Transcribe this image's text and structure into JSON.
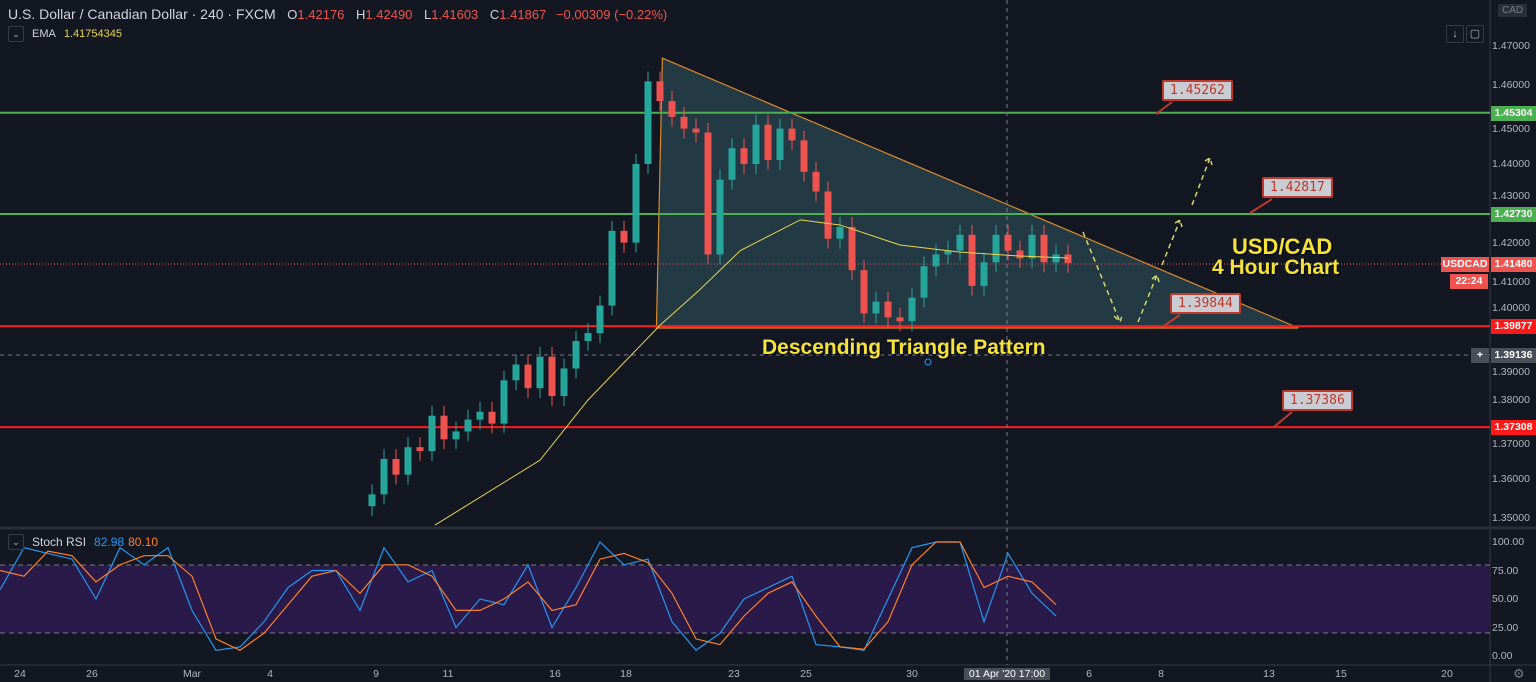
{
  "header": {
    "symbol": "U.S. Dollar / Canadian Dollar · 240 · FXCM",
    "o_label": "O",
    "o": "1.42176",
    "h_label": "H",
    "h": "1.42490",
    "l_label": "L",
    "l": "1.41603",
    "c_label": "C",
    "c": "1.41867",
    "change": "−0.00309 (−0.22%)"
  },
  "ema": {
    "label": "EMA",
    "value": "1.41754345"
  },
  "stoch": {
    "label": "Stoch RSI",
    "k": "82.98",
    "d": "80.10"
  },
  "currency": "CAD",
  "price_axis": [
    "1.47000",
    "1.46000",
    "1.45000",
    "1.44000",
    "1.43000",
    "1.42000",
    "1.41000",
    "1.40000",
    "1.39000",
    "1.38000",
    "1.37000",
    "1.36000",
    "1.35000"
  ],
  "stoch_axis": [
    "100.00",
    "75.00",
    "50.00",
    "25.00",
    "0.00"
  ],
  "tags": {
    "l1": "1.45304",
    "l2": "1.42730",
    "cur_name": "USDCAD",
    "cur": "1.41480",
    "countdown": "22:24",
    "l3": "1.39877",
    "cross": "1.39136",
    "l4": "1.37308"
  },
  "x_axis": [
    "24",
    "26",
    "Mar",
    "4",
    "9",
    "11",
    "16",
    "18",
    "23",
    "25",
    "30",
    "01 Apr '20  17:00",
    "6",
    "8",
    "13",
    "15",
    "20"
  ],
  "annotations": {
    "c1": "1.45262",
    "c2": "1.42817",
    "c3": "1.39844",
    "c4": "1.37386",
    "pattern": "Descending Triangle Pattern",
    "title1": "USD/CAD",
    "title2": "4 Hour Chart"
  },
  "colors": {
    "up": "#26a69a",
    "down": "#ef5350",
    "support": "#ff1a1a",
    "resistance": "#4caf50",
    "ema": "#e8d44d",
    "k": "#2196f3",
    "d": "#ff7f27",
    "band": "#2a1a4a"
  },
  "chart_data": {
    "type": "candlestick",
    "price_range": [
      1.35,
      1.47
    ],
    "closes": [
      1.356,
      1.365,
      1.361,
      1.368,
      1.367,
      1.376,
      1.37,
      1.372,
      1.375,
      1.377,
      1.374,
      1.385,
      1.389,
      1.383,
      1.391,
      1.381,
      1.388,
      1.395,
      1.397,
      1.404,
      1.423,
      1.42,
      1.44,
      1.461,
      1.456,
      1.452,
      1.449,
      1.448,
      1.417,
      1.436,
      1.444,
      1.44,
      1.45,
      1.441,
      1.449,
      1.446,
      1.438,
      1.433,
      1.421,
      1.424,
      1.413,
      1.402,
      1.405,
      1.401,
      1.4,
      1.406,
      1.414,
      1.417,
      1.418,
      1.422,
      1.409,
      1.415,
      1.422,
      1.418,
      1.416,
      1.422,
      1.415,
      1.417,
      1.4148
    ],
    "ema": [
      [
        5.25,
        1.3482
      ],
      [
        14,
        1.3647
      ],
      [
        18,
        1.38
      ],
      [
        24,
        1.399
      ],
      [
        27.3,
        1.408
      ],
      [
        30.7,
        1.418
      ],
      [
        35.7,
        1.4258
      ],
      [
        39,
        1.4245
      ],
      [
        44,
        1.4194
      ],
      [
        49,
        1.4176
      ],
      [
        54,
        1.4166
      ],
      [
        58,
        1.4161
      ]
    ],
    "levels": [
      {
        "price": 1.45304,
        "kind": "resistance"
      },
      {
        "price": 1.4273,
        "kind": "resistance"
      },
      {
        "price": 1.39877,
        "kind": "support"
      },
      {
        "price": 1.37308,
        "kind": "support"
      }
    ],
    "triangle": [
      [
        24.2,
        1.4669
      ],
      [
        23.7,
        1.3983
      ],
      [
        77.2,
        1.3983
      ]
    ],
    "stoch_k": [
      58,
      95,
      90,
      85,
      50,
      95,
      80,
      95,
      40,
      5,
      8,
      30,
      60,
      75,
      75,
      40,
      95,
      65,
      75,
      25,
      50,
      45,
      80,
      25,
      60,
      100,
      80,
      85,
      30,
      5,
      20,
      50,
      60,
      70,
      10,
      8,
      5,
      50,
      95,
      100,
      100,
      30,
      90,
      55,
      35
    ],
    "stoch_d": [
      75,
      70,
      92,
      88,
      65,
      80,
      88,
      88,
      70,
      15,
      5,
      20,
      45,
      70,
      75,
      55,
      80,
      80,
      70,
      40,
      40,
      50,
      65,
      40,
      45,
      85,
      90,
      82,
      55,
      15,
      10,
      35,
      55,
      65,
      35,
      8,
      6,
      30,
      80,
      100,
      100,
      60,
      70,
      65,
      45
    ],
    "stoch_bands": [
      20,
      80
    ]
  }
}
